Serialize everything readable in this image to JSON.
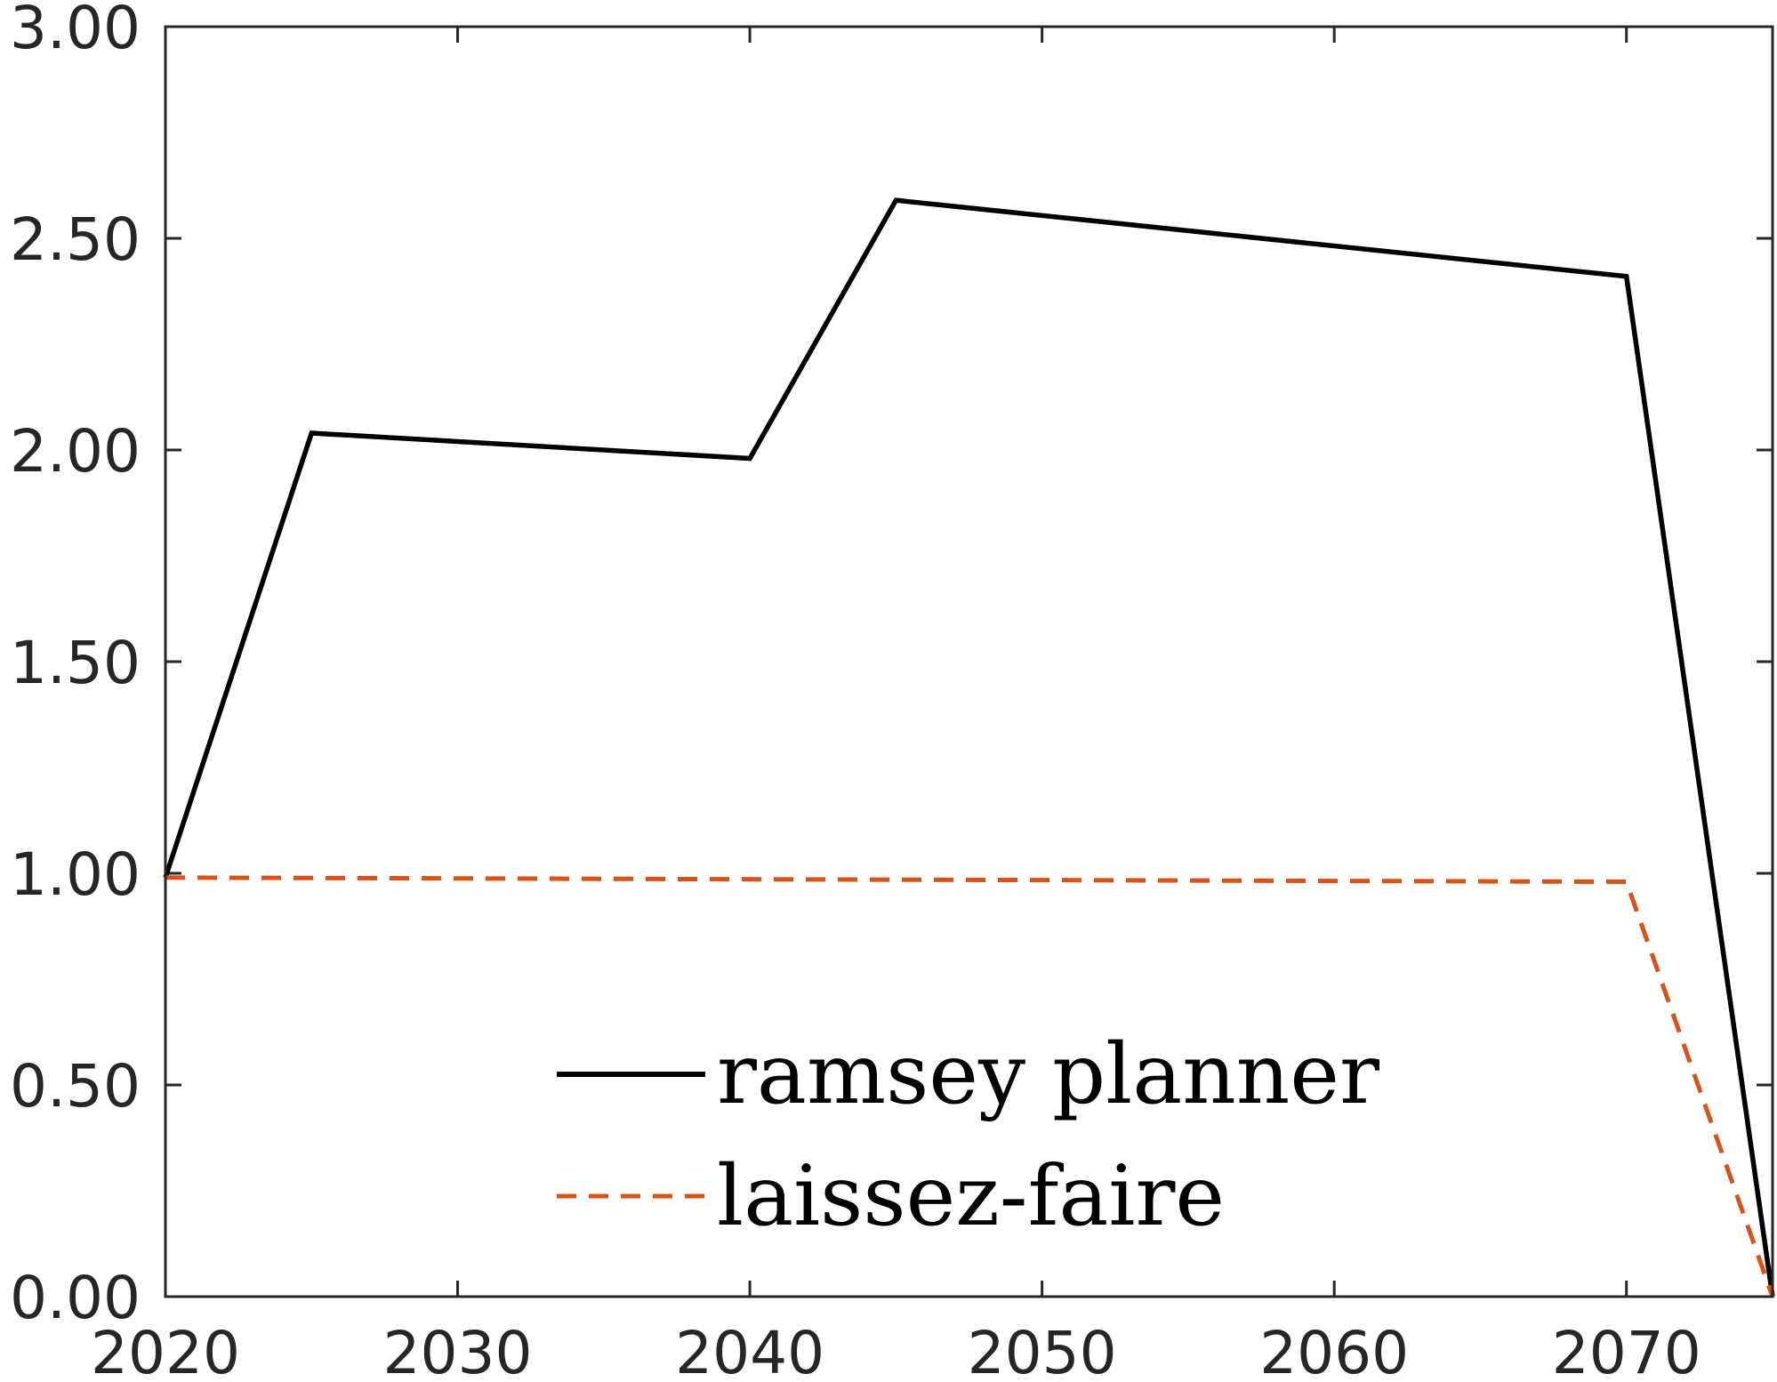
{
  "chart_data": {
    "type": "line",
    "title": "",
    "xlabel": "",
    "ylabel": "",
    "xlim": [
      2020,
      2075
    ],
    "ylim": [
      0,
      3
    ],
    "x_ticks": [
      2020,
      2030,
      2040,
      2050,
      2060,
      2070
    ],
    "x_tick_labels": [
      "2020",
      "2030",
      "2040",
      "2050",
      "2060",
      "2070"
    ],
    "y_ticks": [
      0,
      0.5,
      1,
      1.5,
      2,
      2.5,
      3
    ],
    "y_tick_labels": [
      "0.00",
      "0.50",
      "1.00",
      "1.50",
      "2.00",
      "2.50",
      "3.00"
    ],
    "grid": false,
    "legend_position": "bottom-center",
    "series": [
      {
        "name": "ramsey planner",
        "color": "#000000",
        "style": "solid",
        "x": [
          2020,
          2025,
          2040,
          2045,
          2070,
          2075
        ],
        "y": [
          0.99,
          2.04,
          1.98,
          2.59,
          2.41,
          0.0
        ]
      },
      {
        "name": "laissez-faire",
        "color": "#D95319",
        "style": "dashed",
        "x": [
          2020,
          2070,
          2075
        ],
        "y": [
          0.99,
          0.98,
          0.0
        ]
      }
    ]
  }
}
